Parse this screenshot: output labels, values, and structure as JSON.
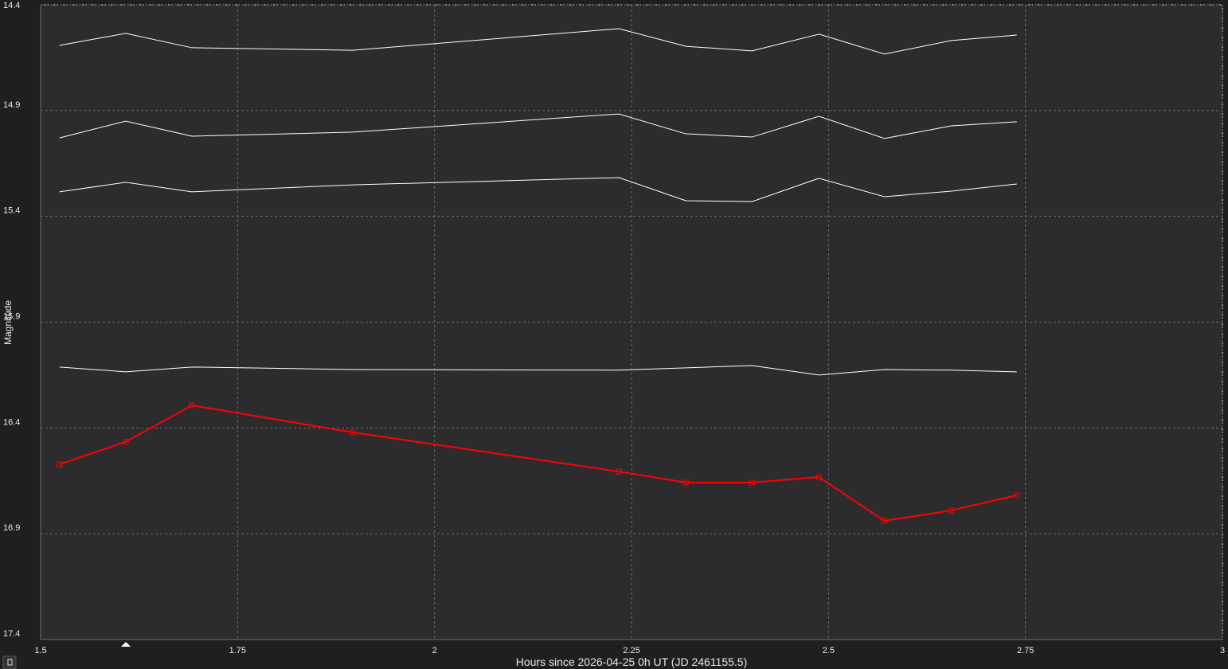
{
  "chart_data": {
    "type": "line",
    "xlabel": "Hours since 2026-04-25 0h UT (JD 2461155.5)",
    "ylabel": "Magnitude",
    "x": [
      1.524,
      1.608,
      1.692,
      1.896,
      2.234,
      2.319,
      2.403,
      2.488,
      2.571,
      2.656,
      2.739
    ],
    "series": [
      {
        "color": "#ffffff",
        "values": [
          14.592,
          14.535,
          14.603,
          14.615,
          14.513,
          14.596,
          14.618,
          14.539,
          14.633,
          14.569,
          14.543
        ]
      },
      {
        "color": "#ffffff",
        "values": [
          15.029,
          14.95,
          15.021,
          15.002,
          14.916,
          15.01,
          15.025,
          14.927,
          15.032,
          14.972,
          14.953
        ]
      },
      {
        "color": "#ffffff",
        "values": [
          15.284,
          15.239,
          15.284,
          15.251,
          15.217,
          15.326,
          15.33,
          15.22,
          15.307,
          15.281,
          15.247
        ]
      },
      {
        "color": "#ffffff",
        "values": [
          16.112,
          16.135,
          16.112,
          16.124,
          16.127,
          16.116,
          16.105,
          16.15,
          16.124,
          16.127,
          16.135
        ]
      },
      {
        "color": "#ff0000",
        "markers": true,
        "values": [
          16.572,
          16.466,
          16.293,
          16.421,
          16.606,
          16.658,
          16.658,
          16.632,
          16.839,
          16.79,
          16.718
        ]
      }
    ],
    "xlim": [
      1.5,
      3
    ],
    "xticks": [
      1.5,
      1.75,
      2,
      2.25,
      2.5,
      2.75,
      3
    ],
    "ylim": [
      14.4,
      17.4
    ],
    "yticks": [
      14.4,
      14.9,
      15.4,
      15.9,
      16.4,
      16.9,
      17.4
    ],
    "y_reversed": true,
    "grid": true
  }
}
